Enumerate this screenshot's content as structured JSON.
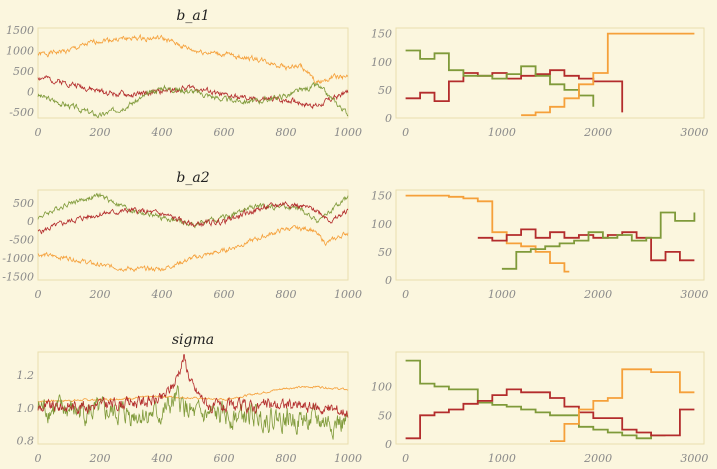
{
  "colors": {
    "background": "#fbf6de",
    "plot_frame": "#e8deae",
    "tick_text": "#8a8a8a",
    "chain_red": "#b32c2c",
    "chain_orange": "#f5a03a",
    "chain_green": "#7f9a3a"
  },
  "chart_data": [
    {
      "type": "line",
      "title": "b_a1",
      "x_ticks": [
        "0",
        "200",
        "400",
        "600",
        "800",
        "1000"
      ],
      "y_ticks": [
        "1500",
        "1000",
        "500",
        "0",
        "-500"
      ],
      "xlim": [
        0,
        1000
      ],
      "ylim": [
        -650,
        1550
      ],
      "series": [
        {
          "color": "#f5a03a",
          "anchors": [
            [
              0,
              900
            ],
            [
              100,
              1000
            ],
            [
              200,
              1250
            ],
            [
              300,
              1300
            ],
            [
              400,
              1300
            ],
            [
              500,
              1000
            ],
            [
              600,
              900
            ],
            [
              700,
              800
            ],
            [
              800,
              600
            ],
            [
              850,
              600
            ],
            [
              900,
              200
            ],
            [
              950,
              350
            ],
            [
              1000,
              350
            ]
          ],
          "noise": 50,
          "seed": 1
        },
        {
          "color": "#b32c2c",
          "anchors": [
            [
              0,
              350
            ],
            [
              100,
              200
            ],
            [
              200,
              0
            ],
            [
              300,
              -100
            ],
            [
              400,
              0
            ],
            [
              500,
              100
            ],
            [
              600,
              -100
            ],
            [
              700,
              -200
            ],
            [
              800,
              -200
            ],
            [
              900,
              -350
            ],
            [
              1000,
              0
            ]
          ],
          "noise": 55,
          "seed": 2
        },
        {
          "color": "#7f9a3a",
          "anchors": [
            [
              0,
              -100
            ],
            [
              100,
              -350
            ],
            [
              200,
              -600
            ],
            [
              300,
              -300
            ],
            [
              400,
              100
            ],
            [
              500,
              0
            ],
            [
              600,
              -200
            ],
            [
              700,
              -250
            ],
            [
              800,
              -100
            ],
            [
              900,
              150
            ],
            [
              1000,
              -550
            ]
          ],
          "noise": 55,
          "seed": 3
        }
      ]
    },
    {
      "type": "line",
      "title": "b_a2",
      "x_ticks": [
        "0",
        "200",
        "400",
        "600",
        "800",
        "1000"
      ],
      "y_ticks": [
        "500",
        "0",
        "-500",
        "-1000",
        "-1500"
      ],
      "xlim": [
        0,
        1000
      ],
      "ylim": [
        -1600,
        850
      ],
      "series": [
        {
          "color": "#7f9a3a",
          "anchors": [
            [
              0,
              100
            ],
            [
              100,
              500
            ],
            [
              200,
              700
            ],
            [
              300,
              300
            ],
            [
              400,
              100
            ],
            [
              500,
              -100
            ],
            [
              600,
              100
            ],
            [
              700,
              400
            ],
            [
              800,
              400
            ],
            [
              850,
              300
            ],
            [
              900,
              0
            ],
            [
              1000,
              650
            ]
          ],
          "noise": 55,
          "seed": 4
        },
        {
          "color": "#b32c2c",
          "anchors": [
            [
              0,
              -300
            ],
            [
              100,
              0
            ],
            [
              200,
              200
            ],
            [
              300,
              300
            ],
            [
              400,
              200
            ],
            [
              500,
              -100
            ],
            [
              600,
              0
            ],
            [
              700,
              300
            ],
            [
              800,
              500
            ],
            [
              900,
              300
            ],
            [
              950,
              0
            ],
            [
              1000,
              300
            ]
          ],
          "noise": 60,
          "seed": 5
        },
        {
          "color": "#f5a03a",
          "anchors": [
            [
              0,
              -900
            ],
            [
              100,
              -1000
            ],
            [
              200,
              -1200
            ],
            [
              300,
              -1300
            ],
            [
              400,
              -1300
            ],
            [
              500,
              -1000
            ],
            [
              600,
              -800
            ],
            [
              700,
              -500
            ],
            [
              800,
              -200
            ],
            [
              880,
              -200
            ],
            [
              930,
              -600
            ],
            [
              1000,
              -300
            ]
          ],
          "noise": 50,
          "seed": 6
        }
      ]
    },
    {
      "type": "line",
      "title": "sigma",
      "x_ticks": [
        "0",
        "200",
        "400",
        "600",
        "800",
        "1000"
      ],
      "y_ticks": [
        "1.2",
        "1.0",
        "0.8"
      ],
      "xlim": [
        0,
        1000
      ],
      "ylim": [
        0.78,
        1.34
      ],
      "series": [
        {
          "color": "#f5a03a",
          "anchors": [
            [
              0,
              1.04
            ],
            [
              200,
              1.05
            ],
            [
              400,
              1.07
            ],
            [
              600,
              1.05
            ],
            [
              800,
              1.12
            ],
            [
              900,
              1.13
            ],
            [
              1000,
              1.11
            ]
          ],
          "noise": 0.005,
          "seed": 7
        },
        {
          "color": "#7f9a3a",
          "anchors": [
            [
              0,
              1.0
            ],
            [
              200,
              0.97
            ],
            [
              400,
              0.96
            ],
            [
              450,
              1.05
            ],
            [
              500,
              0.95
            ],
            [
              700,
              0.95
            ],
            [
              900,
              0.92
            ],
            [
              1000,
              0.9
            ]
          ],
          "noise": 0.055,
          "seed": 8
        },
        {
          "color": "#b32c2c",
          "anchors": [
            [
              0,
              1.0
            ],
            [
              200,
              1.02
            ],
            [
              400,
              1.05
            ],
            [
              440,
              1.15
            ],
            [
              470,
              1.31
            ],
            [
              500,
              1.12
            ],
            [
              560,
              1.0
            ],
            [
              800,
              1.02
            ],
            [
              1000,
              0.98
            ]
          ],
          "noise": 0.03,
          "seed": 9
        }
      ]
    },
    {
      "type": "histogram",
      "x_ticks": [
        "0",
        "1000",
        "2000",
        "3000"
      ],
      "y_ticks": [
        "150",
        "100",
        "50",
        "0"
      ],
      "xlim": [
        -100,
        3100
      ],
      "ylim": [
        0,
        160
      ],
      "series": [
        {
          "color": "#b32c2c",
          "edges": [
            0,
            150,
            300,
            450,
            600,
            750,
            900,
            1050,
            1200,
            1350,
            1500,
            1650,
            1800,
            1950,
            2100,
            2250
          ],
          "values": [
            35,
            45,
            30,
            65,
            80,
            75,
            80,
            70,
            75,
            78,
            85,
            75,
            70,
            65,
            65,
            10
          ]
        },
        {
          "color": "#7f9a3a",
          "edges": [
            0,
            150,
            300,
            450,
            600,
            750,
            900,
            1050,
            1200,
            1350,
            1500,
            1650,
            1800,
            1950
          ],
          "values": [
            120,
            105,
            115,
            85,
            75,
            75,
            70,
            78,
            92,
            75,
            60,
            50,
            40,
            20
          ]
        },
        {
          "color": "#f5a03a",
          "edges": [
            1200,
            1350,
            1500,
            1650,
            1800,
            1950,
            2100,
            2250,
            2400,
            2550,
            2700,
            2850,
            3000
          ],
          "values": [
            5,
            10,
            20,
            35,
            60,
            80,
            150,
            150,
            150,
            150,
            150,
            150
          ]
        }
      ]
    },
    {
      "type": "histogram",
      "x_ticks": [
        "0",
        "1000",
        "2000",
        "3000"
      ],
      "y_ticks": [
        "150",
        "100",
        "50",
        "0"
      ],
      "xlim": [
        -100,
        3100
      ],
      "ylim": [
        0,
        160
      ],
      "series": [
        {
          "color": "#f5a03a",
          "edges": [
            0,
            150,
            300,
            450,
            600,
            750,
            900,
            1050,
            1200,
            1350,
            1500,
            1650,
            1700
          ],
          "values": [
            150,
            150,
            150,
            148,
            145,
            140,
            85,
            65,
            60,
            50,
            30,
            15
          ]
        },
        {
          "color": "#b32c2c",
          "edges": [
            750,
            900,
            1050,
            1200,
            1350,
            1500,
            1650,
            1800,
            1950,
            2100,
            2250,
            2400,
            2550,
            2700,
            2850,
            3000
          ],
          "values": [
            75,
            70,
            80,
            90,
            75,
            85,
            75,
            80,
            75,
            80,
            85,
            75,
            35,
            50,
            35
          ]
        },
        {
          "color": "#7f9a3a",
          "edges": [
            1000,
            1150,
            1300,
            1450,
            1600,
            1750,
            1900,
            2050,
            2200,
            2350,
            2500,
            2650,
            2800,
            3000
          ],
          "values": [
            20,
            50,
            55,
            60,
            65,
            70,
            85,
            75,
            80,
            70,
            75,
            120,
            105,
            120
          ]
        }
      ]
    },
    {
      "type": "histogram",
      "x_ticks": [
        "0",
        "1000",
        "2000",
        "3000"
      ],
      "y_ticks": [
        "100",
        "50",
        "0"
      ],
      "xlim": [
        -100,
        3100
      ],
      "ylim": [
        0,
        160
      ],
      "series": [
        {
          "color": "#7f9a3a",
          "edges": [
            0,
            150,
            300,
            450,
            600,
            750,
            900,
            1050,
            1200,
            1350,
            1500,
            1650,
            1800,
            1950,
            2100,
            2250,
            2400,
            2550,
            2700
          ],
          "values": [
            145,
            105,
            100,
            95,
            95,
            72,
            68,
            65,
            60,
            55,
            50,
            50,
            30,
            25,
            20,
            15,
            10,
            15
          ]
        },
        {
          "color": "#b32c2c",
          "edges": [
            0,
            150,
            300,
            450,
            600,
            750,
            900,
            1050,
            1200,
            1350,
            1500,
            1650,
            1800,
            1950,
            2100,
            2250,
            2400,
            2550,
            2700,
            2850,
            3000
          ],
          "values": [
            10,
            50,
            55,
            60,
            70,
            75,
            85,
            95,
            90,
            90,
            80,
            65,
            55,
            45,
            45,
            25,
            20,
            15,
            15,
            60
          ]
        },
        {
          "color": "#f5a03a",
          "edges": [
            1500,
            1650,
            1800,
            1950,
            2100,
            2250,
            2400,
            2550,
            2700,
            2850,
            3000
          ],
          "values": [
            5,
            35,
            60,
            75,
            80,
            130,
            130,
            125,
            125,
            90
          ]
        }
      ]
    }
  ]
}
